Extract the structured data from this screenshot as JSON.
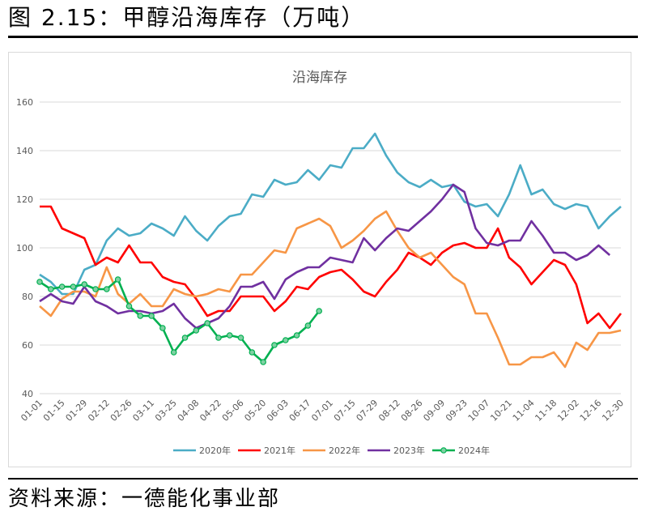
{
  "figure_title": "图 2.15：甲醇沿海库存（万吨）",
  "source_note": "资料来源：一德能化事业部",
  "chart_data": {
    "type": "line",
    "title": "沿海库存",
    "xlabel": "",
    "ylabel": "",
    "ylim": [
      40,
      160
    ],
    "yticks": [
      40,
      60,
      80,
      100,
      120,
      140,
      160
    ],
    "grid": true,
    "legend_position": "bottom",
    "x_tick_labels": [
      "01-01",
      "01-15",
      "01-29",
      "02-12",
      "02-26",
      "03-11",
      "03-25",
      "04-08",
      "04-22",
      "05-06",
      "05-20",
      "06-03",
      "06-17",
      "07-01",
      "07-15",
      "07-29",
      "08-12",
      "08-26",
      "09-09",
      "09-23",
      "10-07",
      "10-21",
      "11-04",
      "11-18",
      "12-02",
      "12-16",
      "12-30"
    ],
    "series": [
      {
        "name": "2020年",
        "color": "#4bacc6",
        "marker": false,
        "values": [
          89,
          86,
          81,
          81,
          91,
          93,
          103,
          108,
          105,
          106,
          110,
          108,
          105,
          113,
          107,
          103,
          109,
          113,
          114,
          122,
          121,
          128,
          126,
          127,
          132,
          128,
          134,
          133,
          141,
          141,
          147,
          138,
          131,
          127,
          125,
          128,
          125,
          126,
          119,
          117,
          118,
          113,
          122,
          134,
          122,
          124,
          118,
          116,
          118,
          117,
          108,
          113,
          117
        ]
      },
      {
        "name": "2021年",
        "color": "#ff0000",
        "marker": false,
        "values": [
          117,
          117,
          108,
          106,
          104,
          93,
          96,
          94,
          101,
          94,
          94,
          88,
          86,
          85,
          79,
          72,
          74,
          74,
          80,
          80,
          80,
          74,
          78,
          84,
          83,
          88,
          90,
          91,
          87,
          82,
          80,
          86,
          91,
          98,
          96,
          93,
          98,
          101,
          102,
          100,
          100,
          108,
          96,
          92,
          85,
          90,
          95,
          93,
          85,
          69,
          73,
          67,
          73
        ]
      },
      {
        "name": "2022年",
        "color": "#f79646",
        "marker": false,
        "values": [
          76,
          72,
          79,
          82,
          82,
          80,
          92,
          81,
          77,
          81,
          76,
          76,
          83,
          81,
          80,
          81,
          83,
          82,
          89,
          89,
          94,
          99,
          98,
          108,
          110,
          112,
          109,
          100,
          103,
          107,
          112,
          115,
          107,
          100,
          96,
          98,
          93,
          88,
          85,
          73,
          73,
          63,
          52,
          52,
          55,
          55,
          57,
          51,
          61,
          58,
          65,
          65,
          66
        ]
      },
      {
        "name": "2023年",
        "color": "#7030a0",
        "marker": false,
        "values": [
          78,
          81,
          78,
          77,
          84,
          78,
          76,
          73,
          74,
          74,
          73,
          74,
          77,
          71,
          67,
          69,
          71,
          76,
          84,
          84,
          86,
          79,
          87,
          90,
          92,
          92,
          96,
          95,
          94,
          104,
          99,
          104,
          108,
          107,
          111,
          115,
          120,
          126,
          123,
          108,
          102,
          101,
          103,
          103,
          111,
          105,
          98,
          98,
          95,
          97,
          101,
          97
        ]
      },
      {
        "name": "2024年",
        "color": "#00b050",
        "marker": true,
        "values": [
          86,
          83,
          84,
          84,
          85,
          83,
          83,
          87,
          76,
          72,
          72,
          67,
          57,
          63,
          66,
          69,
          63,
          64,
          63,
          57,
          53,
          60,
          62,
          64,
          68,
          74
        ]
      }
    ]
  }
}
